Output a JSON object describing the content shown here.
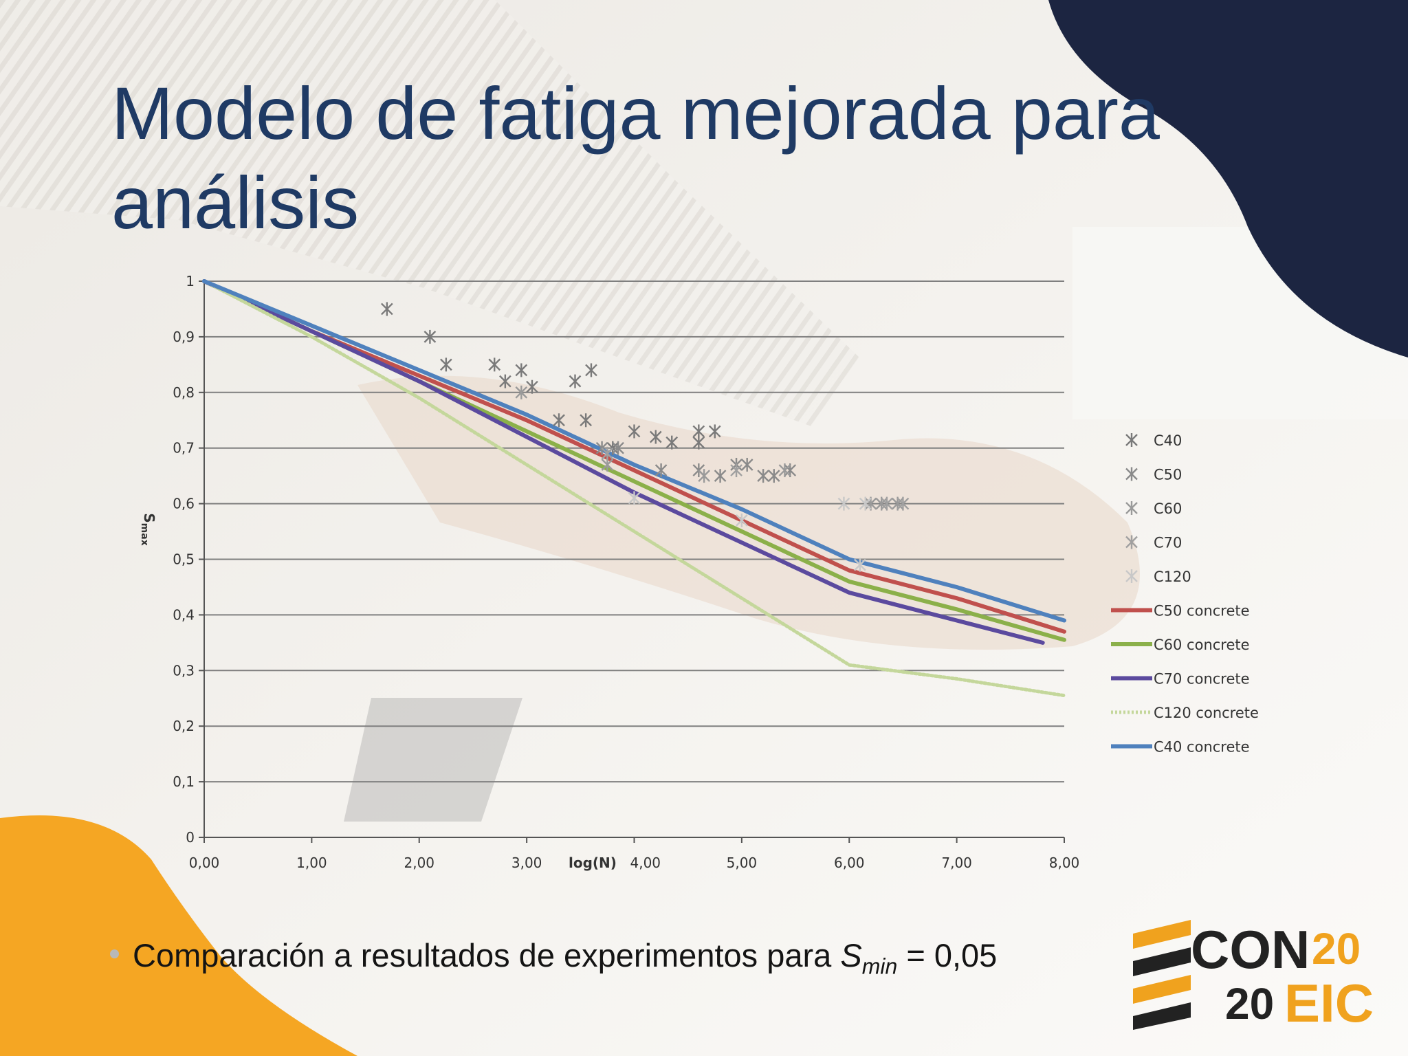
{
  "title": "Modelo de fatiga mejorada para análisis",
  "bullet": {
    "text_before": "Comparación a resultados de experimentos para ",
    "var_main": "S",
    "var_sub": "min",
    "text_after": " = 0,05"
  },
  "logo": {
    "word1": "CON",
    "num1": "20",
    "num2": "20",
    "word2": "EIC"
  },
  "colors": {
    "title": "#1f3a64",
    "navy_blob": "#1c2541",
    "orange_blob": "#f5a623",
    "logo_orange": "#f0a21e",
    "logo_dark": "#222222"
  },
  "chart_data": {
    "type": "line",
    "xlabel": "log(N)",
    "ylabel": "Smax",
    "xlim": [
      0,
      8
    ],
    "ylim": [
      0,
      1
    ],
    "x_ticks": [
      "0,00",
      "1,00",
      "2,00",
      "3,00",
      "4,00",
      "5,00",
      "6,00",
      "7,00",
      "8,00"
    ],
    "y_ticks": [
      "0",
      "0,1",
      "0,2",
      "0,3",
      "0,4",
      "0,5",
      "0,6",
      "0,7",
      "0,8",
      "0,9",
      "1"
    ],
    "grid": true,
    "legend_position": "right",
    "scatter_series": [
      {
        "name": "C40",
        "color": "#7a7a7a",
        "points": [
          [
            1.7,
            0.95
          ],
          [
            2.1,
            0.9
          ],
          [
            2.25,
            0.85
          ],
          [
            2.7,
            0.85
          ],
          [
            2.8,
            0.82
          ],
          [
            2.95,
            0.84
          ],
          [
            3.05,
            0.81
          ],
          [
            3.45,
            0.82
          ],
          [
            3.6,
            0.84
          ],
          [
            3.3,
            0.75
          ],
          [
            3.55,
            0.75
          ],
          [
            3.8,
            0.7
          ],
          [
            4.0,
            0.73
          ],
          [
            4.2,
            0.72
          ],
          [
            4.35,
            0.71
          ],
          [
            4.6,
            0.71
          ],
          [
            4.6,
            0.73
          ],
          [
            4.75,
            0.73
          ]
        ]
      },
      {
        "name": "C50",
        "color": "#8a8a8a",
        "points": [
          [
            3.7,
            0.7
          ],
          [
            3.85,
            0.7
          ],
          [
            4.25,
            0.66
          ],
          [
            4.6,
            0.66
          ],
          [
            4.8,
            0.65
          ],
          [
            4.95,
            0.67
          ],
          [
            5.05,
            0.67
          ],
          [
            5.2,
            0.65
          ],
          [
            5.3,
            0.65
          ],
          [
            5.45,
            0.66
          ]
        ]
      },
      {
        "name": "C60",
        "color": "#9a9a9a",
        "points": [
          [
            2.95,
            0.8
          ],
          [
            3.75,
            0.67
          ],
          [
            4.65,
            0.65
          ],
          [
            5.4,
            0.66
          ],
          [
            6.2,
            0.6
          ],
          [
            6.3,
            0.6
          ],
          [
            6.45,
            0.6
          ]
        ]
      },
      {
        "name": "C70",
        "color": "#a0a0a0",
        "points": [
          [
            3.75,
            0.69
          ],
          [
            4.95,
            0.66
          ],
          [
            6.35,
            0.6
          ],
          [
            6.5,
            0.6
          ]
        ]
      },
      {
        "name": "C120",
        "color": "#c8c8c8",
        "points": [
          [
            4.0,
            0.61
          ],
          [
            5.0,
            0.57
          ],
          [
            5.95,
            0.6
          ],
          [
            6.1,
            0.49
          ],
          [
            6.15,
            0.6
          ]
        ]
      }
    ],
    "line_series": [
      {
        "name": "C50 concrete",
        "color": "#c0504d",
        "x": [
          0,
          1,
          2,
          3,
          4,
          5,
          6,
          7,
          8
        ],
        "y": [
          1.0,
          0.91,
          0.83,
          0.75,
          0.66,
          0.57,
          0.48,
          0.43,
          0.37
        ]
      },
      {
        "name": "C60 concrete",
        "color": "#8bb04a",
        "x": [
          0,
          1,
          2,
          3,
          4,
          5,
          6,
          7,
          8
        ],
        "y": [
          1.0,
          0.91,
          0.82,
          0.73,
          0.64,
          0.55,
          0.46,
          0.41,
          0.355
        ]
      },
      {
        "name": "C70 concrete",
        "color": "#5b4a9e",
        "x": [
          0,
          1,
          2,
          3,
          4,
          5,
          6,
          7,
          7.8
        ],
        "y": [
          1.0,
          0.91,
          0.82,
          0.72,
          0.62,
          0.53,
          0.44,
          0.39,
          0.35
        ]
      },
      {
        "name": "C120 concrete",
        "color": "#c4d79b",
        "x": [
          0,
          1,
          2,
          3,
          4,
          5,
          6,
          7,
          8
        ],
        "y": [
          1.0,
          0.9,
          0.79,
          0.67,
          0.55,
          0.43,
          0.31,
          0.285,
          0.255
        ]
      },
      {
        "name": "C40 concrete",
        "color": "#4f81bd",
        "x": [
          0,
          1,
          2,
          3,
          4,
          5,
          6,
          7,
          8
        ],
        "y": [
          1.0,
          0.92,
          0.84,
          0.76,
          0.67,
          0.59,
          0.5,
          0.45,
          0.39
        ]
      }
    ]
  }
}
